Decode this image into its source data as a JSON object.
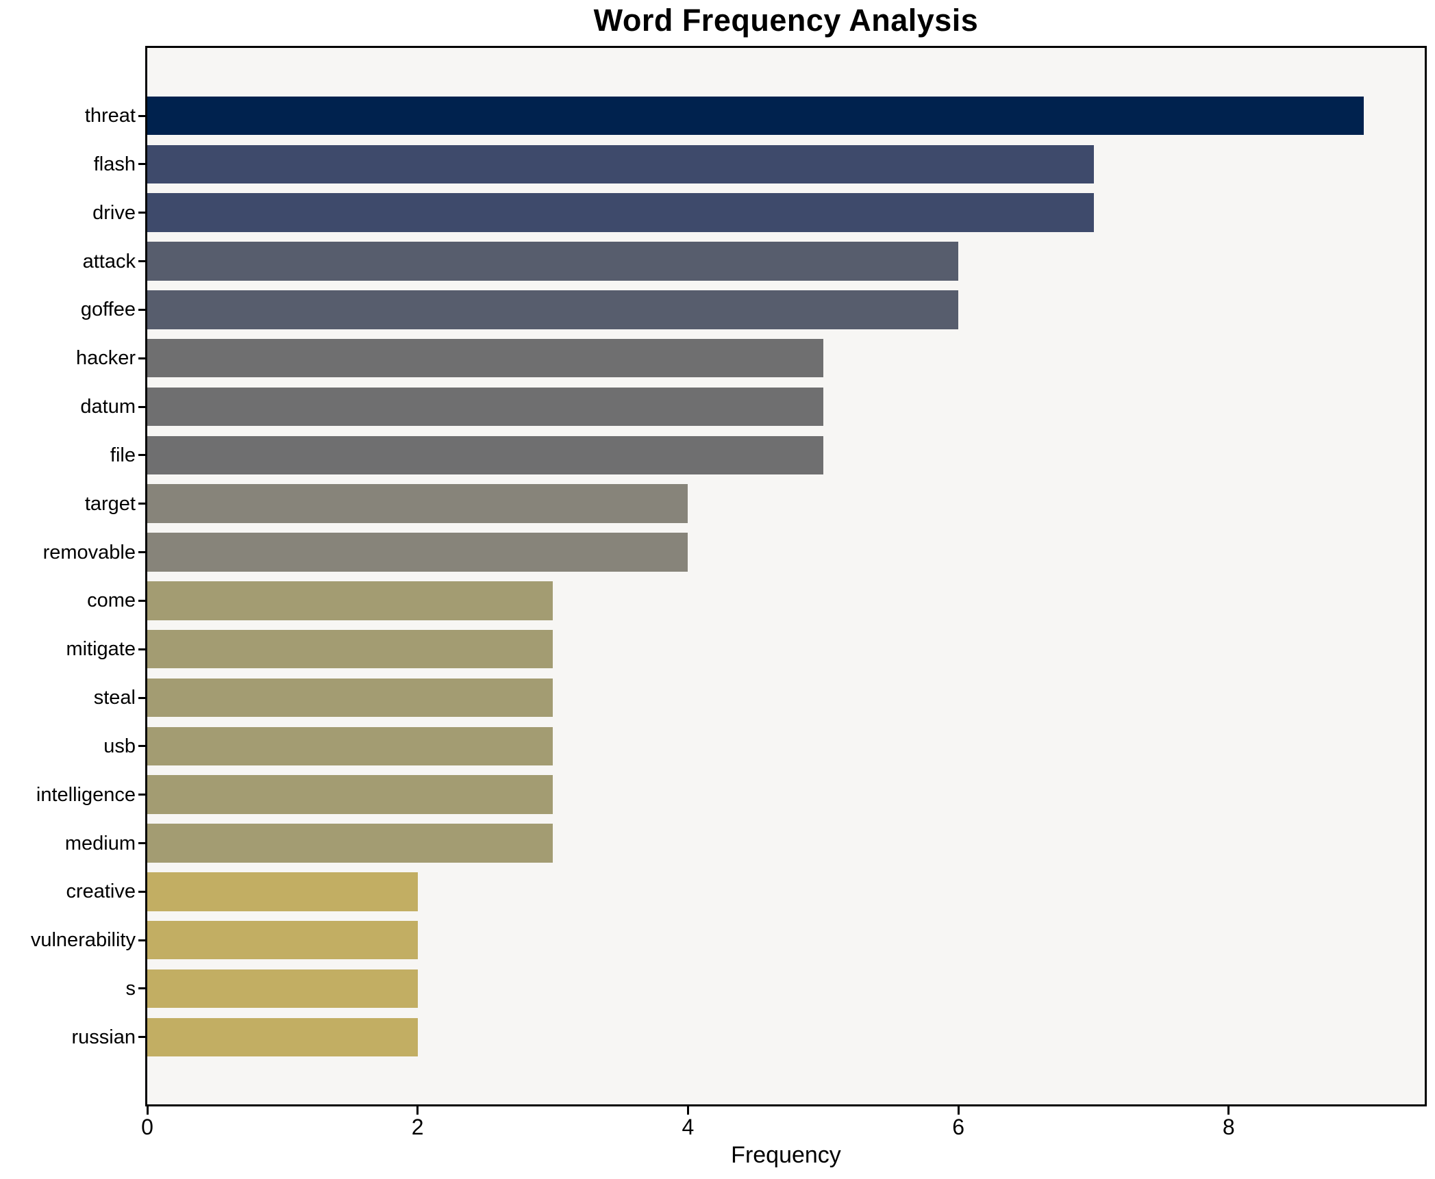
{
  "title": "Word Frequency Analysis",
  "chart_data": {
    "type": "bar",
    "orientation": "horizontal",
    "title": "Word Frequency Analysis",
    "xlabel": "Frequency",
    "ylabel": "",
    "categories": [
      "threat",
      "flash",
      "drive",
      "attack",
      "goffee",
      "hacker",
      "datum",
      "file",
      "target",
      "removable",
      "come",
      "mitigate",
      "steal",
      "usb",
      "intelligence",
      "medium",
      "creative",
      "vulnerability",
      "s",
      "russian"
    ],
    "values": [
      9,
      7,
      7,
      6,
      6,
      5,
      5,
      5,
      4,
      4,
      3,
      3,
      3,
      3,
      3,
      3,
      2,
      2,
      2,
      2
    ],
    "bar_colors": [
      "#00224e",
      "#3e4a6b",
      "#3e4a6b",
      "#575d6d",
      "#575d6d",
      "#6f6f70",
      "#6f6f70",
      "#6f6f70",
      "#87847a",
      "#87847a",
      "#a39c72",
      "#a39c72",
      "#a39c72",
      "#a39c72",
      "#a39c72",
      "#a39c72",
      "#c2ae63",
      "#c2ae63",
      "#c2ae63",
      "#c2ae63"
    ],
    "xlim": [
      0,
      9.45
    ],
    "xticks": [
      0,
      2,
      4,
      6,
      8
    ],
    "grid": false,
    "legend_position": "none",
    "plot_bg": "#f7f6f4",
    "figure_bg": "#ffffff",
    "spine_color": "#000000"
  }
}
